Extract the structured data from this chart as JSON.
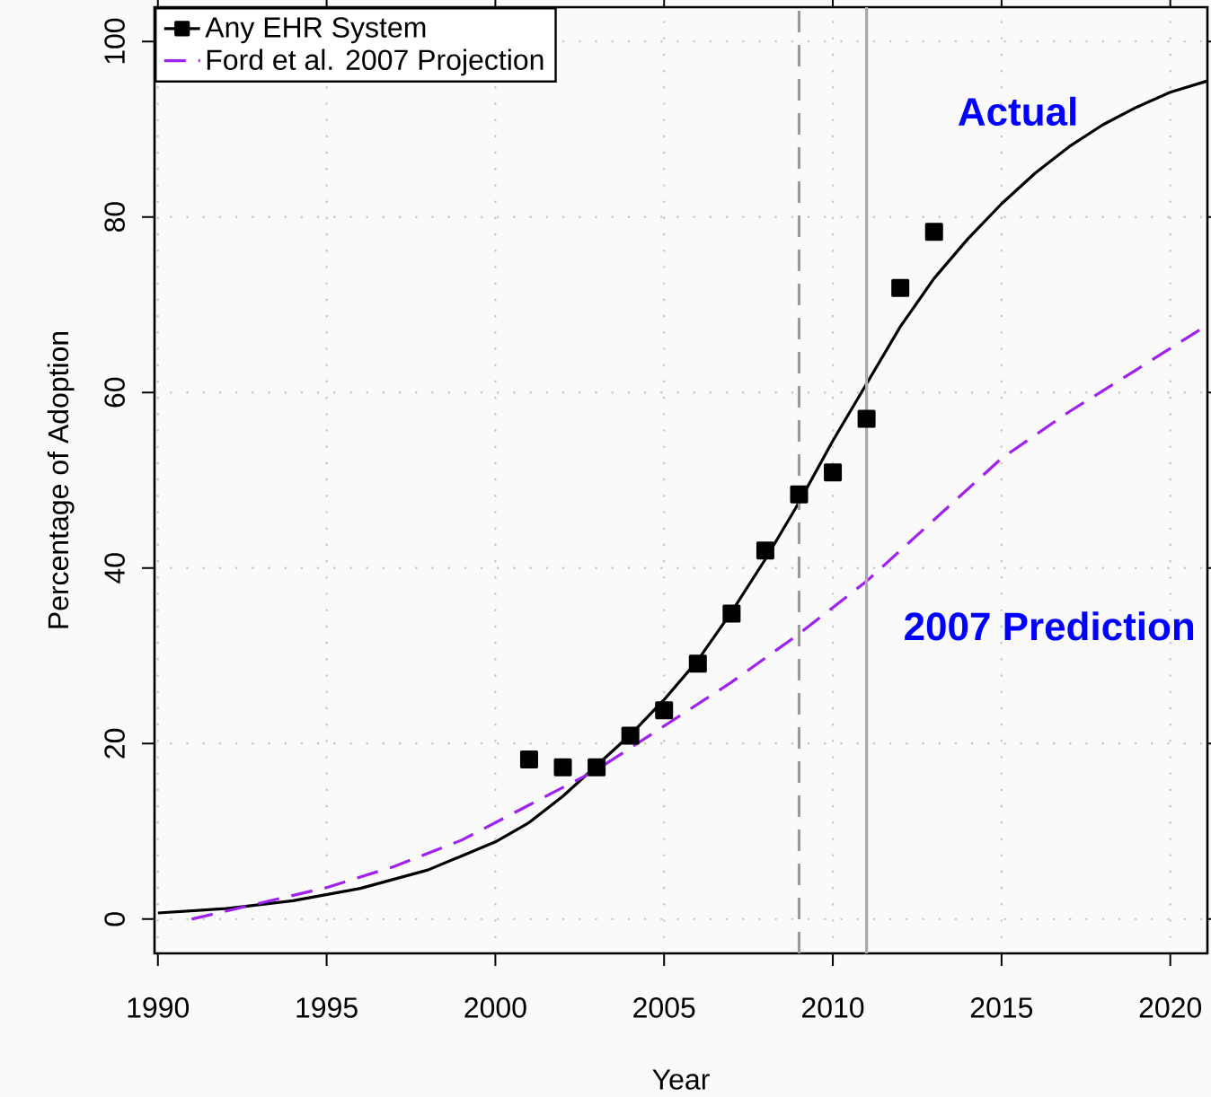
{
  "chart_data": {
    "type": "line",
    "xlabel": "Year",
    "ylabel": "Percentage of Adoption",
    "xlim": [
      1989.9,
      2021.1
    ],
    "ylim": [
      -3.9,
      103.9
    ],
    "xticks": [
      1990,
      1995,
      2000,
      2005,
      2010,
      2015,
      2020
    ],
    "yticks": [
      0,
      20,
      40,
      60,
      80,
      100
    ],
    "grid": true,
    "legend": "top left",
    "series": [
      {
        "name": "Any EHR System",
        "type": "scatter",
        "marker": "square",
        "color": "#000000",
        "x": [
          2001,
          2002,
          2003,
          2004,
          2005,
          2006,
          2007,
          2008,
          2009,
          2010,
          2011,
          2012,
          2013
        ],
        "values": [
          18.2,
          17.3,
          17.3,
          20.9,
          23.8,
          29.1,
          34.8,
          42.0,
          48.4,
          50.9,
          57.0,
          71.9,
          78.3
        ]
      },
      {
        "line_style": "solid",
        "color": "#000000",
        "x": [
          1990,
          1992,
          1994,
          1996,
          1998,
          2000,
          2001,
          2002,
          2003,
          2004,
          2005,
          2006,
          2007,
          2008,
          2009,
          2010,
          2011,
          2012,
          2013,
          2014,
          2015,
          2016,
          2017,
          2018,
          2019,
          2020,
          2021.1
        ],
        "values": [
          0.7,
          1.2,
          2.1,
          3.5,
          5.6,
          8.8,
          11.0,
          14.0,
          17.5,
          21.0,
          25.0,
          29.5,
          35.0,
          41.0,
          47.5,
          54.5,
          61.0,
          67.5,
          73.0,
          77.5,
          81.5,
          85.0,
          88.0,
          90.5,
          92.5,
          94.2,
          95.5
        ]
      },
      {
        "name": "Ford et al. 2007 Projection",
        "type": "line",
        "line_style": "dashed",
        "color": "#a020f0",
        "x": [
          1991,
          1993,
          1995,
          1997,
          1999,
          2001,
          2003,
          2005,
          2007,
          2009,
          2011,
          2013,
          2015,
          2017,
          2019,
          2021.1
        ],
        "values": [
          0,
          1.8,
          3.6,
          6.0,
          9.0,
          13.0,
          17.0,
          22.0,
          27.0,
          32.5,
          38.5,
          45.5,
          52.5,
          57.8,
          62.6,
          67.7
        ]
      }
    ],
    "ref_lines": [
      {
        "axis": "x",
        "value": 2009,
        "line_style": "dashed",
        "color": "#9a9a9a"
      },
      {
        "axis": "x",
        "value": 2011,
        "line_style": "solid",
        "color": "#aaaaaa"
      }
    ],
    "annotations": [
      "Actual",
      "2007 Prediction"
    ]
  }
}
